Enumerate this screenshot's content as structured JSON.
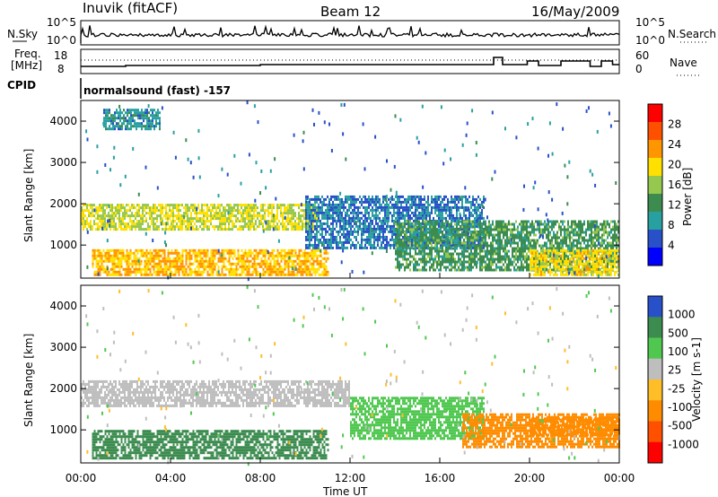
{
  "header": {
    "station": "Inuvik (fitACF)",
    "beam": "Beam 12",
    "date": "16/May/2009"
  },
  "top_panels": {
    "nsky_label": "N.Sky",
    "nsky_ticks": [
      "10^5",
      "10^0"
    ],
    "nsearch_label": "N.Search",
    "nsearch_ticks": [
      "10^5",
      "10^0"
    ],
    "freq_label_1": "Freq.",
    "freq_label_2": "[MHz]",
    "freq_ticks": [
      "18",
      "8"
    ],
    "nave_label": "Nave",
    "nave_ticks": [
      "60",
      "0"
    ],
    "cpid_label": "CPID",
    "cpid_text": "normalsound (fast) -157"
  },
  "colors": {
    "power_scale": [
      "#0000ff",
      "#2850c8",
      "#28a0a0",
      "#3c8c50",
      "#96c850",
      "#ffe000",
      "#ff9600",
      "#ff5000",
      "#ff0000"
    ],
    "velocity_scale": [
      "#2850c8",
      "#3c8c50",
      "#50c850",
      "#bebebe",
      "#ffbe28",
      "#ff8c00",
      "#ff5000",
      "#ff0000"
    ]
  },
  "chart_data": [
    {
      "type": "heatmap",
      "name_key": "power",
      "ylabel": "Slant Range [km]",
      "yticks": [
        "1000",
        "2000",
        "3000",
        "4000"
      ],
      "ylim": [
        200,
        4500
      ],
      "colorbar_label": "Power [dB]",
      "colorbar_ticks": [
        "4",
        "8",
        "12",
        "16",
        "20",
        "24",
        "28"
      ],
      "regions": [
        {
          "t": [
            0.5,
            11.0
          ],
          "r": [
            300,
            900
          ],
          "level": 26
        },
        {
          "t": [
            0.0,
            10.5
          ],
          "r": [
            1400,
            2000
          ],
          "level": 22
        },
        {
          "t": [
            10.0,
            18.0
          ],
          "r": [
            900,
            2200
          ],
          "level": 10
        },
        {
          "t": [
            14.0,
            24.0
          ],
          "r": [
            400,
            1600
          ],
          "level": 16
        },
        {
          "t": [
            20.0,
            24.0
          ],
          "r": [
            300,
            900
          ],
          "level": 24
        },
        {
          "t": [
            1.0,
            3.5
          ],
          "r": [
            3800,
            4300
          ],
          "level": 12
        }
      ]
    },
    {
      "type": "heatmap",
      "name_key": "velocity",
      "ylabel": "Slant Range [km]",
      "yticks": [
        "1000",
        "2000",
        "3000",
        "4000"
      ],
      "ylim": [
        200,
        4500
      ],
      "colorbar_label": "Velocity [m s-1]",
      "colorbar_ticks": [
        "1000",
        "500",
        "100",
        "25",
        "-25",
        "-100",
        "-500",
        "-1000"
      ],
      "regions": [
        {
          "t": [
            0.5,
            11.0
          ],
          "r": [
            300,
            1000
          ],
          "level": 100
        },
        {
          "t": [
            0.0,
            12.0
          ],
          "r": [
            1600,
            2200
          ],
          "level": 0
        },
        {
          "t": [
            12.0,
            18.0
          ],
          "r": [
            800,
            1800
          ],
          "level": 50
        },
        {
          "t": [
            17.0,
            24.0
          ],
          "r": [
            600,
            1400
          ],
          "level": -200
        },
        {
          "t": [
            20.0,
            24.0
          ],
          "r": [
            900,
            1300
          ],
          "level": -500
        }
      ]
    }
  ],
  "xaxis": {
    "label": "Time UT",
    "ticks": [
      "00:00",
      "04:00",
      "08:00",
      "12:00",
      "16:00",
      "20:00",
      "00:00"
    ]
  }
}
